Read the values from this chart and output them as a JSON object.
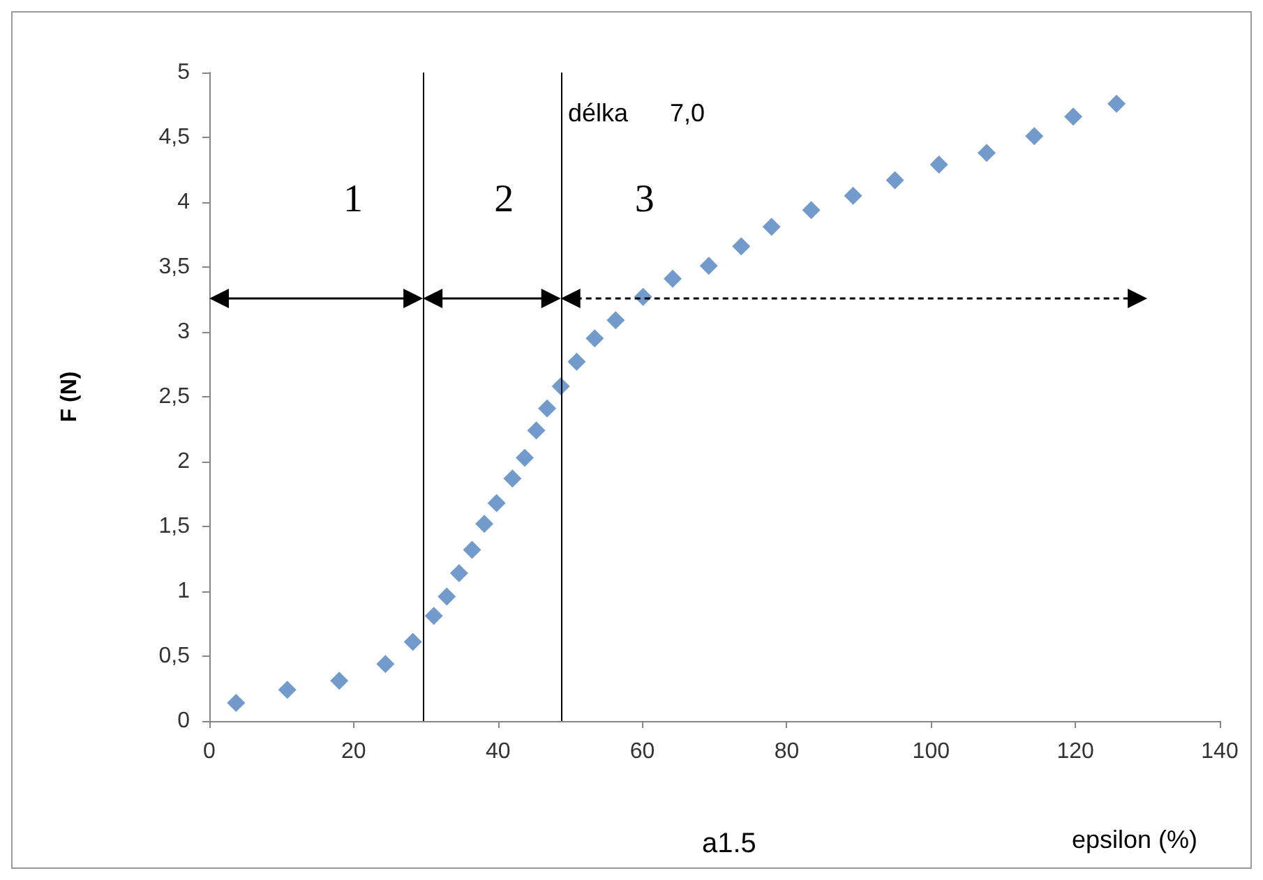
{
  "chart_data": {
    "type": "scatter",
    "xlabel": "epsilon (%)",
    "ylabel": "F (N)",
    "x": [
      3.7,
      10.8,
      18,
      24.4,
      28.2,
      31.1,
      32.9,
      34.6,
      36.4,
      38.1,
      39.8,
      42,
      43.7,
      45.3,
      46.8,
      48.7,
      50.9,
      53.4,
      56.3,
      60.1,
      64.2,
      69.2,
      73.7,
      77.9,
      83.4,
      89.2,
      95,
      101.1,
      107.7,
      114.3,
      119.7,
      125.7
    ],
    "series": [
      {
        "color": "#4f81bd",
        "values": [
          0.14,
          0.24,
          0.31,
          0.44,
          0.61,
          0.81,
          0.96,
          1.14,
          1.32,
          1.52,
          1.68,
          1.87,
          2.03,
          2.24,
          2.41,
          2.58,
          2.77,
          2.95,
          3.09,
          3.27,
          3.41,
          3.51,
          3.66,
          3.81,
          3.94,
          4.05,
          4.17,
          4.29,
          4.38,
          4.51,
          4.66,
          4.76
        ]
      }
    ],
    "marker": "diamond",
    "xlim": [
      0,
      140
    ],
    "xticks": [
      0,
      20,
      40,
      60,
      80,
      100,
      120,
      140
    ],
    "ylim": [
      0,
      5
    ],
    "yticks": [
      0,
      {
        "value": 0.5,
        "label": "0,5"
      },
      1,
      {
        "value": 1.5,
        "label": "1,5"
      },
      2,
      {
        "value": 2.5,
        "label": "2,5"
      },
      3,
      {
        "value": 3.5,
        "label": "3,5"
      },
      4,
      {
        "value": 4.5,
        "label": "4,5"
      },
      5
    ],
    "ref_lines": [
      {
        "axis": "x",
        "value": 29.6,
        "color": "#000000"
      },
      {
        "axis": "x",
        "value": 48.7,
        "color": "#000000"
      }
    ],
    "annotations": [
      "1",
      "2",
      "3",
      "délka      7,0",
      "a1.5"
    ]
  }
}
